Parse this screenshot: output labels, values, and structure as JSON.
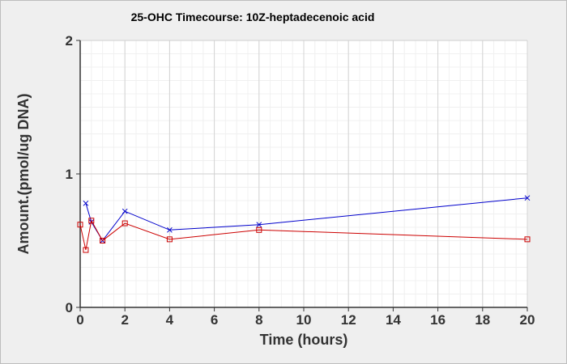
{
  "chart_data": {
    "type": "line",
    "title": "25-OHC Timecourse: 10Z-heptadecenoic acid",
    "xlabel": "Time (hours)",
    "ylabel": "Amount.(pmol/ug DNA)",
    "xlim": [
      0,
      20
    ],
    "ylim": [
      0,
      2
    ],
    "xticks": [
      "0",
      "2",
      "4",
      "6",
      "8",
      "10",
      "12",
      "14",
      "16",
      "18",
      "20"
    ],
    "yticks": [
      "0",
      "1",
      "2"
    ],
    "grid": true,
    "legend": "none",
    "series": [
      {
        "color": "#0000cc",
        "marker": "x",
        "x": [
          0.25,
          0.5,
          1,
          2,
          4,
          8,
          20
        ],
        "y": [
          0.78,
          0.64,
          0.5,
          0.72,
          0.58,
          0.62,
          0.82
        ]
      },
      {
        "color": "#cc0000",
        "marker": "square",
        "x": [
          0,
          0.25,
          0.5,
          1,
          2,
          4,
          8,
          20
        ],
        "y": [
          0.62,
          0.43,
          0.65,
          0.5,
          0.63,
          0.51,
          0.58,
          0.51
        ]
      }
    ]
  }
}
